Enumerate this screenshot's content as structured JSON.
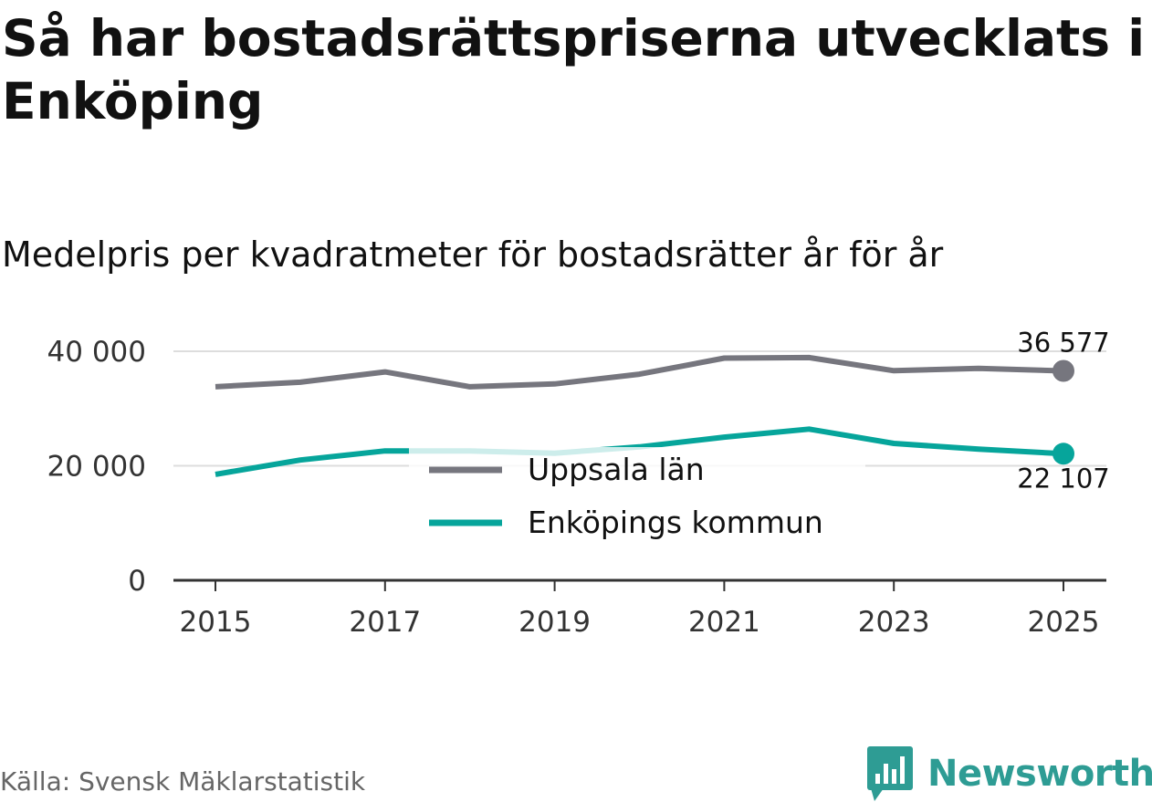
{
  "title": "Så har bostadsrättspriserna utvecklats i Enköping",
  "subtitle": "Medelpris per kvadratmeter för bostadsrätter år för år",
  "source": "Källa: Svensk Mäklarstatistik",
  "brand": {
    "name": "Newsworthy",
    "logo_icon": "bar-chart-speech-bubble-icon"
  },
  "colors": {
    "uppsala": "#76767e",
    "enkoping": "#06a59b",
    "grid": "#dddddd",
    "axis": "#333333",
    "brand": "#2e9c94"
  },
  "chart_data": {
    "type": "line",
    "title": "Medelpris per kvadratmeter för bostadsrätter år för år",
    "xlabel": "",
    "ylabel": "",
    "x": [
      2015,
      2016,
      2017,
      2018,
      2019,
      2020,
      2021,
      2022,
      2023,
      2024,
      2025
    ],
    "x_ticks": [
      "2015",
      "2017",
      "2019",
      "2021",
      "2023",
      "2025"
    ],
    "y_ticks": [
      {
        "value": 0,
        "label": "0"
      },
      {
        "value": 20000,
        "label": "20 000"
      },
      {
        "value": 40000,
        "label": "40 000"
      }
    ],
    "ylim": [
      0,
      40000
    ],
    "grid": true,
    "legend_position": "center",
    "series": [
      {
        "name": "Uppsala län",
        "color": "#76767e",
        "values": [
          33800,
          34600,
          36400,
          33800,
          34300,
          36000,
          38800,
          38900,
          36600,
          37000,
          36577
        ],
        "end_label": "36 577"
      },
      {
        "name": "Enköpings kommun",
        "color": "#06a59b",
        "values": [
          18500,
          21000,
          22600,
          22600,
          22200,
          23300,
          25000,
          26400,
          23900,
          22900,
          22107
        ],
        "end_label": "22 107"
      }
    ]
  }
}
